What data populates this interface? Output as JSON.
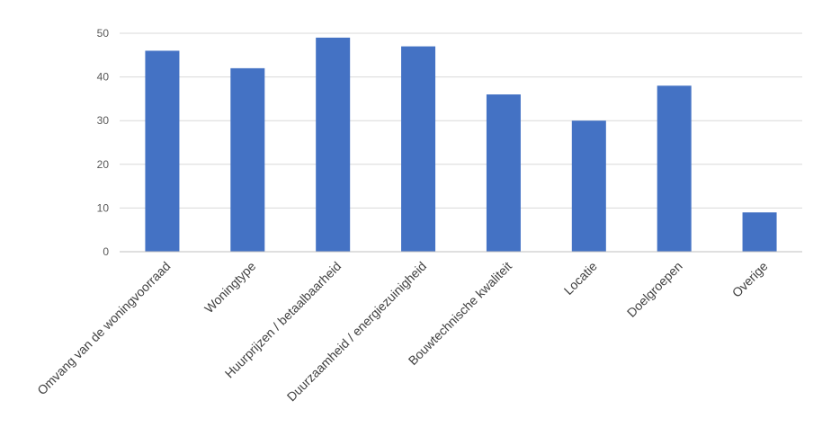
{
  "chart_data": {
    "type": "bar",
    "categories": [
      "Omvang van de woningvoorraad",
      "Woningtype",
      "Huurprijzen / betaalbaarheid",
      "Duurzaamheid / energiezuinigheid",
      "Bouwtechnische kwaliteit",
      "Locatie",
      "Doelgroepen",
      "Overige"
    ],
    "values": [
      46,
      42,
      49,
      47,
      36,
      30,
      38,
      9
    ],
    "ylim": [
      0,
      50
    ],
    "yticks": [
      0,
      10,
      20,
      30,
      40,
      50
    ],
    "grid": true,
    "colors": {
      "bar": "#4472C4",
      "grid": "#D9D9D9",
      "axis": "#BFBFBF"
    }
  }
}
